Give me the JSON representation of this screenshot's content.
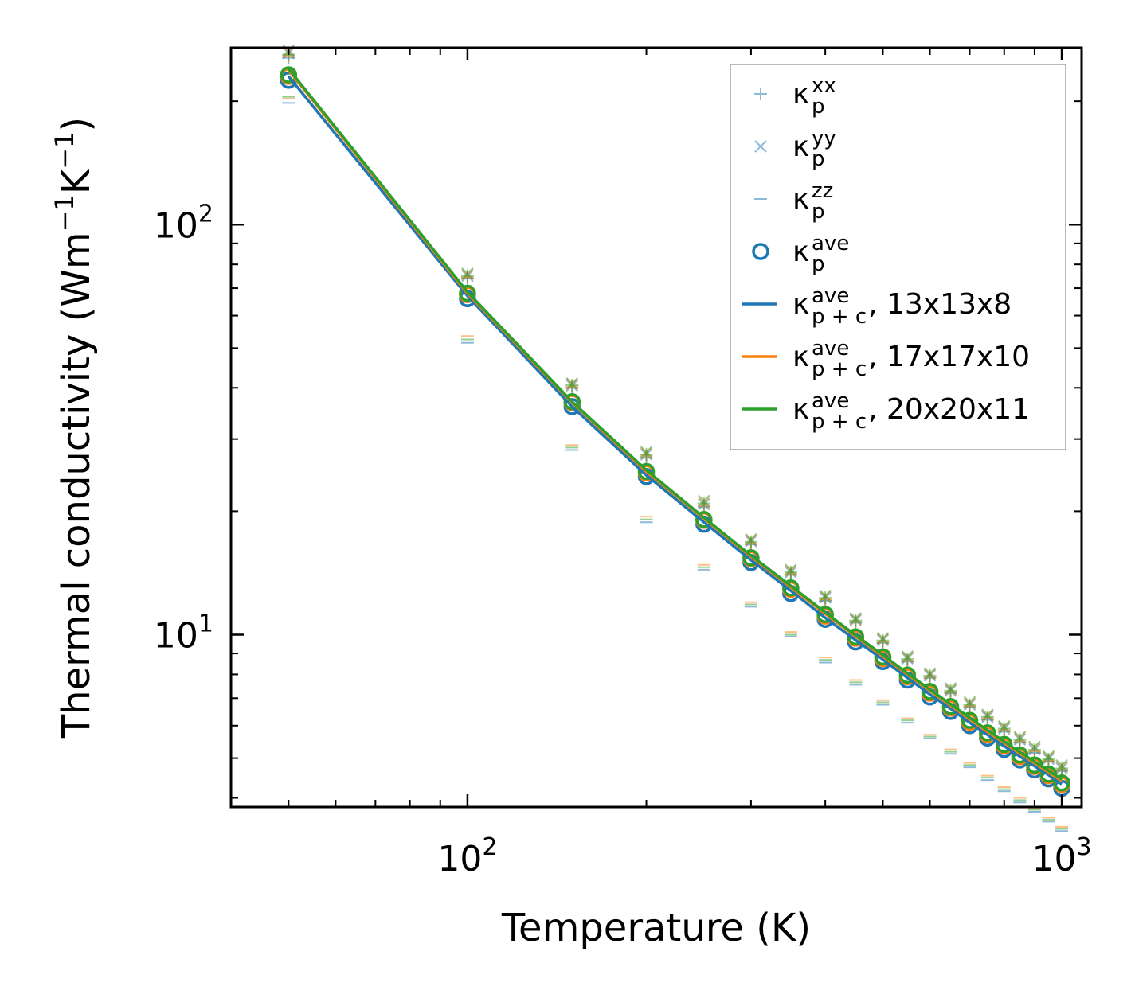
{
  "chart_data": {
    "type": "line",
    "xscale": "log",
    "yscale": "log",
    "xlabel": "Temperature (K)",
    "ylabel": {
      "main": "Thermal conductivity (Wm",
      "exp1": "−1",
      "mid": "K",
      "exp2": "−1",
      "close": ")"
    },
    "xlim": [
      40,
      1080
    ],
    "ylim": [
      3.8,
      270
    ],
    "x_ticks": [
      {
        "value": 100,
        "base": "10",
        "exp": "2"
      },
      {
        "value": 1000,
        "base": "10",
        "exp": "3"
      }
    ],
    "y_ticks": [
      {
        "value": 10,
        "base": "10",
        "exp": "1"
      },
      {
        "value": 100,
        "base": "10",
        "exp": "2"
      }
    ],
    "temperatures": [
      50,
      100,
      150,
      200,
      250,
      300,
      350,
      400,
      450,
      500,
      550,
      600,
      650,
      700,
      750,
      800,
      850,
      900,
      950,
      1000
    ],
    "series": [
      {
        "name": "13x13x8",
        "color": "#1f77b4",
        "kappa_c_ave": [
          230,
          67.0,
          36.0,
          24.5,
          18.8,
          15.2,
          12.8,
          11.0,
          9.7,
          8.7,
          7.85,
          7.15,
          6.6,
          6.1,
          5.7,
          5.35,
          5.05,
          4.78,
          4.55,
          4.32
        ],
        "kappa_p_xx": [
          255,
          74.0,
          40.0,
          27.0,
          20.5,
          16.6,
          14.0,
          12.1,
          10.7,
          9.55,
          8.6,
          7.85,
          7.2,
          6.65,
          6.2,
          5.8,
          5.45,
          5.15,
          4.9,
          4.65
        ],
        "kappa_p_yy": [
          262,
          75.0,
          40.5,
          27.5,
          20.8,
          16.9,
          14.2,
          12.3,
          10.85,
          9.7,
          8.75,
          7.95,
          7.3,
          6.75,
          6.3,
          5.9,
          5.55,
          5.25,
          4.98,
          4.72
        ],
        "kappa_p_zz": [
          198,
          51.5,
          28.2,
          18.8,
          14.4,
          11.7,
          9.9,
          8.55,
          7.55,
          6.75,
          6.1,
          5.58,
          5.12,
          4.75,
          4.42,
          4.15,
          3.9,
          3.7,
          3.5,
          3.32
        ],
        "kappa_p_ave": [
          225,
          66.0,
          36.0,
          24.3,
          18.6,
          15.0,
          12.6,
          10.9,
          9.6,
          8.6,
          7.75,
          7.05,
          6.5,
          6.0,
          5.6,
          5.25,
          4.95,
          4.68,
          4.45,
          4.22
        ]
      },
      {
        "name": "17x17x10",
        "color": "#ff7f0e",
        "kappa_c_ave": [
          238,
          68.0,
          36.8,
          25.0,
          19.2,
          15.5,
          13.05,
          11.25,
          9.9,
          8.85,
          8.0,
          7.3,
          6.72,
          6.22,
          5.8,
          5.45,
          5.13,
          4.86,
          4.62,
          4.4
        ],
        "kappa_p_xx": [
          258,
          74.5,
          40.3,
          27.3,
          20.7,
          16.7,
          14.1,
          12.2,
          10.75,
          9.6,
          8.65,
          7.9,
          7.25,
          6.7,
          6.25,
          5.85,
          5.5,
          5.2,
          4.93,
          4.68
        ],
        "kappa_p_yy": [
          264,
          75.5,
          40.8,
          27.7,
          21.0,
          17.0,
          14.3,
          12.4,
          10.9,
          9.75,
          8.8,
          8.0,
          7.35,
          6.8,
          6.35,
          5.95,
          5.6,
          5.3,
          5.02,
          4.76
        ],
        "kappa_p_zz": [
          203,
          53.5,
          29.0,
          19.4,
          14.8,
          12.0,
          10.15,
          8.8,
          7.75,
          6.92,
          6.25,
          5.7,
          5.25,
          4.87,
          4.53,
          4.25,
          4.0,
          3.78,
          3.58,
          3.4
        ],
        "kappa_p_ave": [
          230,
          67.5,
          36.8,
          24.8,
          19.0,
          15.3,
          12.9,
          11.1,
          9.8,
          8.75,
          7.9,
          7.2,
          6.62,
          6.12,
          5.7,
          5.35,
          5.04,
          4.77,
          4.53,
          4.31
        ]
      },
      {
        "name": "20x20x11",
        "color": "#2ca02c",
        "kappa_c_ave": [
          240,
          68.5,
          37.0,
          25.2,
          19.3,
          15.6,
          13.15,
          11.33,
          9.97,
          8.92,
          8.05,
          7.35,
          6.77,
          6.27,
          5.85,
          5.49,
          5.17,
          4.9,
          4.66,
          4.44
        ],
        "kappa_p_xx": [
          260,
          75.0,
          40.6,
          27.5,
          20.9,
          16.85,
          14.2,
          12.3,
          10.83,
          9.68,
          8.72,
          7.95,
          7.3,
          6.75,
          6.3,
          5.9,
          5.55,
          5.24,
          4.97,
          4.72
        ],
        "kappa_p_yy": [
          266,
          76.0,
          41.0,
          27.9,
          21.2,
          17.1,
          14.4,
          12.45,
          10.97,
          9.8,
          8.85,
          8.05,
          7.4,
          6.85,
          6.38,
          5.98,
          5.63,
          5.33,
          5.05,
          4.8
        ],
        "kappa_p_zz": [
          205,
          52.5,
          28.6,
          19.1,
          14.6,
          11.85,
          10.0,
          8.68,
          7.65,
          6.84,
          6.18,
          5.64,
          5.18,
          4.81,
          4.48,
          4.2,
          3.95,
          3.74,
          3.54,
          3.36
        ],
        "kappa_p_ave": [
          232,
          68.0,
          37.0,
          25.0,
          19.1,
          15.4,
          13.0,
          11.2,
          9.88,
          8.83,
          7.97,
          7.27,
          6.68,
          6.18,
          5.76,
          5.4,
          5.09,
          4.81,
          4.57,
          4.35
        ]
      }
    ],
    "legend": {
      "position": "top-right",
      "entries": [
        {
          "marker": "plus",
          "base": "κ",
          "sup": "xx",
          "sub": "p",
          "suffix": ""
        },
        {
          "marker": "cross",
          "base": "κ",
          "sup": "yy",
          "sub": "p",
          "suffix": ""
        },
        {
          "marker": "dash",
          "base": "κ",
          "sup": "zz",
          "sub": "p",
          "suffix": ""
        },
        {
          "marker": "circle",
          "base": "κ",
          "sup": "ave",
          "sub": "p",
          "suffix": ""
        },
        {
          "marker": "line",
          "color": "#1f77b4",
          "base": "κ",
          "sup": "ave",
          "sub": "p + c",
          "suffix": ", 13x13x8"
        },
        {
          "marker": "line",
          "color": "#ff7f0e",
          "base": "κ",
          "sup": "ave",
          "sub": "p + c",
          "suffix": ", 17x17x10"
        },
        {
          "marker": "line",
          "color": "#2ca02c",
          "base": "κ",
          "sup": "ave",
          "sub": "p + c",
          "suffix": ", 20x20x11"
        }
      ]
    }
  }
}
